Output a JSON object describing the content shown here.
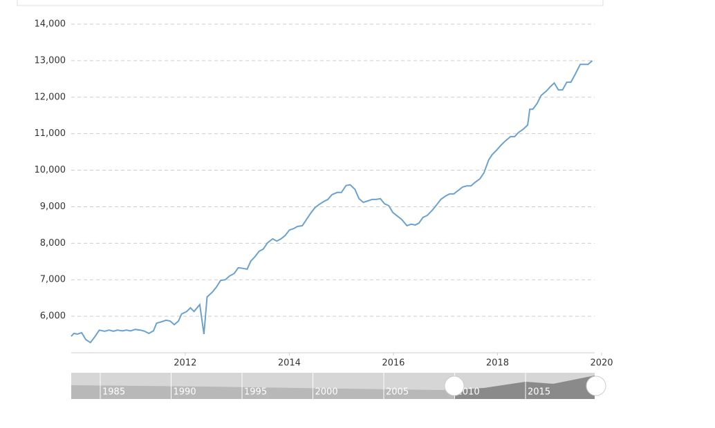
{
  "chart_data": {
    "type": "line",
    "x": [
      2009.81,
      2009.86,
      2009.93,
      2010.01,
      2010.09,
      2010.18,
      2010.27,
      2010.35,
      2010.45,
      2010.54,
      2010.62,
      2010.7,
      2010.79,
      2010.87,
      2010.95,
      2011.04,
      2011.14,
      2011.22,
      2011.3,
      2011.39,
      2011.45,
      2011.55,
      2011.63,
      2011.71,
      2011.79,
      2011.87,
      2011.93,
      2012.03,
      2012.1,
      2012.17,
      2012.28,
      2012.36,
      2012.42,
      2012.52,
      2012.6,
      2012.68,
      2012.77,
      2012.85,
      2012.94,
      2013.02,
      2013.11,
      2013.19,
      2013.26,
      2013.34,
      2013.42,
      2013.5,
      2013.58,
      2013.68,
      2013.76,
      2013.84,
      2013.92,
      2014.0,
      2014.08,
      2014.16,
      2014.25,
      2014.32,
      2014.41,
      2014.49,
      2014.57,
      2014.66,
      2014.74,
      2014.82,
      2014.92,
      2015.0,
      2015.09,
      2015.17,
      2015.26,
      2015.34,
      2015.42,
      2015.51,
      2015.59,
      2015.67,
      2015.75,
      2015.83,
      2015.91,
      2015.99,
      2016.08,
      2016.16,
      2016.26,
      2016.34,
      2016.42,
      2016.49,
      2016.57,
      2016.65,
      2016.75,
      2016.83,
      2016.91,
      2017.0,
      2017.08,
      2017.16,
      2017.24,
      2017.33,
      2017.41,
      2017.49,
      2017.57,
      2017.66,
      2017.74,
      2017.83,
      2017.9,
      2017.99,
      2018.07,
      2018.15,
      2018.25,
      2018.33,
      2018.4,
      2018.5,
      2018.58,
      2018.62,
      2018.68,
      2018.76,
      2018.84,
      2018.94,
      2019.01,
      2019.09,
      2019.17,
      2019.25,
      2019.33,
      2019.41,
      2019.49,
      2019.59,
      2019.66,
      2019.74,
      2019.82
    ],
    "series": [
      {
        "color": "#6aa1d0",
        "values": [
          5450,
          5530,
          5510,
          5550,
          5360,
          5280,
          5450,
          5620,
          5590,
          5620,
          5590,
          5620,
          5600,
          5620,
          5600,
          5640,
          5620,
          5590,
          5530,
          5600,
          5810,
          5850,
          5890,
          5870,
          5770,
          5870,
          6060,
          6130,
          6230,
          6130,
          6320,
          5510,
          6530,
          6660,
          6800,
          6980,
          7000,
          7100,
          7170,
          7330,
          7310,
          7290,
          7510,
          7630,
          7780,
          7840,
          8010,
          8120,
          8060,
          8120,
          8210,
          8360,
          8400,
          8460,
          8480,
          8630,
          8820,
          8970,
          9060,
          9140,
          9200,
          9330,
          9390,
          9390,
          9580,
          9600,
          9480,
          9220,
          9120,
          9160,
          9200,
          9200,
          9220,
          9080,
          9030,
          8840,
          8740,
          8650,
          8480,
          8520,
          8500,
          8550,
          8710,
          8760,
          8910,
          9050,
          9200,
          9290,
          9350,
          9350,
          9440,
          9540,
          9570,
          9570,
          9670,
          9760,
          9930,
          10280,
          10430,
          10560,
          10690,
          10800,
          10920,
          10920,
          11030,
          11130,
          11240,
          11670,
          11670,
          11830,
          12050,
          12170,
          12280,
          12390,
          12200,
          12200,
          12410,
          12410,
          12620,
          12900,
          12900,
          12900,
          13000
        ]
      }
    ],
    "xlim": [
      2009.81,
      2020
    ],
    "xticks": [
      2012,
      2014,
      2016,
      2018,
      2020
    ],
    "ylim": [
      5000,
      14000
    ],
    "yticks": [
      {
        "value": 6000,
        "label": "6,000"
      },
      {
        "value": 7000,
        "label": "7,000"
      },
      {
        "value": 8000,
        "label": "8,000"
      },
      {
        "value": 9000,
        "label": "9,000"
      },
      {
        "value": 10000,
        "label": "10,000"
      },
      {
        "value": 11000,
        "label": "11,000"
      },
      {
        "value": 12000,
        "label": "12,000"
      },
      {
        "value": 13000,
        "label": "13,000"
      },
      {
        "value": 14000,
        "label": "14,000"
      }
    ],
    "grid": true,
    "navigator_labels": [
      "1985",
      "1990",
      "1995",
      "2000",
      "2005",
      "2010",
      "2015"
    ]
  }
}
